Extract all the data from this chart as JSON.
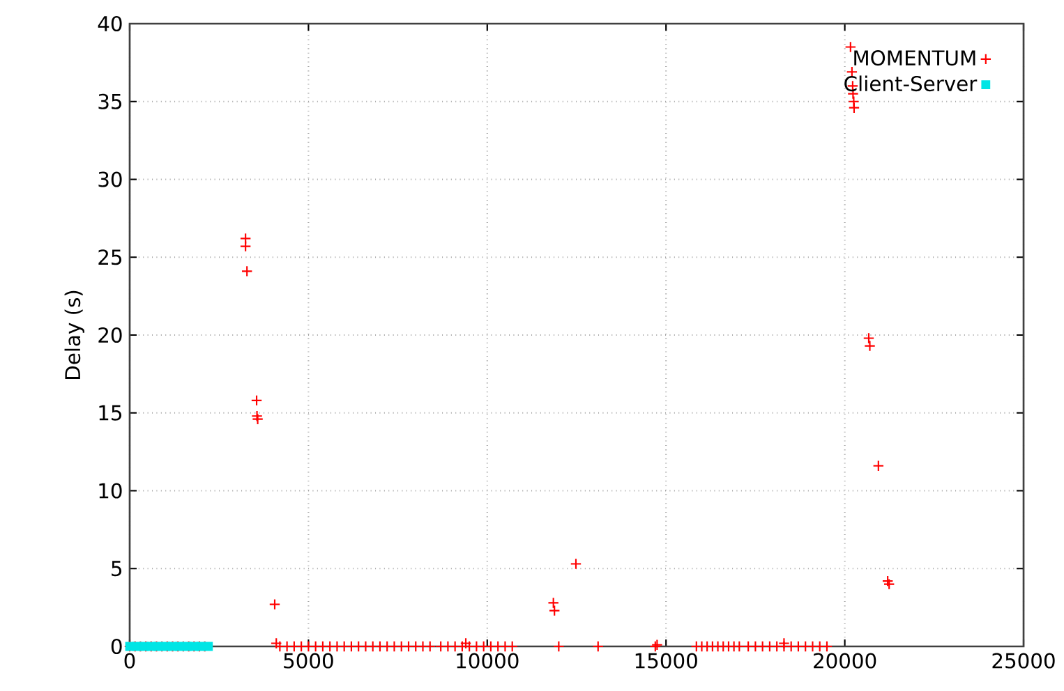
{
  "chart_data": {
    "type": "scatter",
    "ylabel": "Delay (s)",
    "xlim": [
      0,
      25000
    ],
    "ylim": [
      0,
      40
    ],
    "xticks": [
      0,
      5000,
      10000,
      15000,
      20000,
      25000
    ],
    "yticks": [
      0,
      5,
      10,
      15,
      20,
      25,
      30,
      35,
      40
    ],
    "grid": true,
    "legend": "top right",
    "series": [
      {
        "name": "MOMENTUM",
        "color": "#ff0000",
        "marker": "cross",
        "x": [
          0,
          150,
          300,
          450,
          600,
          750,
          900,
          1050,
          1200,
          1350,
          1500,
          1650,
          1800,
          1950,
          2100,
          3240,
          3240,
          3280,
          3550,
          3560,
          3580,
          4056,
          4100,
          4200,
          4400,
          4600,
          4800,
          5000,
          5200,
          5400,
          5600,
          5800,
          6000,
          6200,
          6400,
          6600,
          6800,
          7000,
          7200,
          7400,
          7600,
          7800,
          8000,
          8200,
          8400,
          8700,
          8900,
          9100,
          9300,
          9400,
          9500,
          9700,
          9900,
          10100,
          10300,
          10500,
          10700,
          11850,
          11880,
          12000,
          12480,
          13100,
          14700,
          14750,
          15850,
          16000,
          16150,
          16300,
          16450,
          16600,
          16750,
          16900,
          17050,
          17300,
          17500,
          17700,
          17900,
          18100,
          18300,
          18300,
          18500,
          18700,
          18900,
          19100,
          19300,
          19500,
          20160,
          20200,
          20220,
          20230,
          20250,
          20260,
          20670,
          20700,
          20940,
          21200,
          21240
        ],
        "values": [
          0,
          0,
          0,
          0,
          0,
          0,
          0,
          0,
          0,
          0,
          0,
          0,
          0,
          0,
          0,
          26.2,
          25.7,
          24.1,
          15.8,
          14.8,
          14.6,
          2.7,
          0.2,
          0,
          0,
          0,
          0,
          0,
          0,
          0,
          0,
          0,
          0,
          0,
          0,
          0,
          0,
          0,
          0,
          0,
          0,
          0,
          0,
          0,
          0,
          0,
          0,
          0,
          0,
          0.2,
          0,
          0,
          0,
          0,
          0,
          0,
          0,
          2.8,
          2.3,
          0,
          5.3,
          0,
          0,
          0.1,
          0,
          0,
          0,
          0,
          0,
          0,
          0,
          0,
          0,
          0,
          0,
          0,
          0,
          0,
          0,
          0.2,
          0,
          0,
          0,
          0,
          0,
          0,
          38.5,
          36.9,
          36.0,
          35.5,
          35.0,
          34.6,
          19.8,
          19.3,
          11.6,
          4.2,
          4.0
        ]
      },
      {
        "name": "Client-Server",
        "color": "#00e5e5",
        "marker": "square",
        "x": [
          0,
          200,
          400,
          600,
          800,
          1000,
          1200,
          1400,
          1600,
          1800,
          2000,
          2200
        ],
        "values": [
          0,
          0,
          0,
          0,
          0,
          0,
          0,
          0,
          0,
          0,
          0,
          0
        ]
      }
    ]
  }
}
